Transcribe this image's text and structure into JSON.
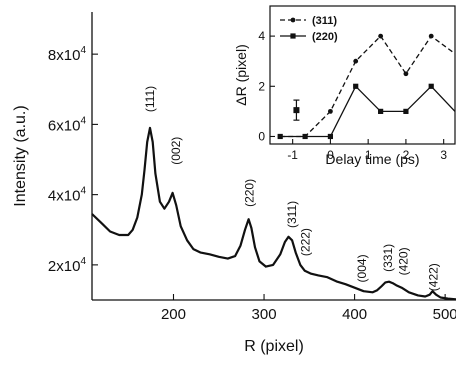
{
  "chart_data": [
    {
      "type": "line",
      "xlabel": "R (pixel)",
      "ylabel": "Intensity (a.u.)",
      "xlim": [
        110,
        512
      ],
      "ylim": [
        10000,
        92000
      ],
      "xticks": [
        200,
        300,
        400,
        500
      ],
      "xtick_labels": [
        "200",
        "300",
        "400",
        "500"
      ],
      "yticks": [
        20000,
        40000,
        60000,
        80000
      ],
      "ytick_labels": [
        {
          "base": "2x10",
          "exp": "4"
        },
        {
          "base": "4x10",
          "exp": "4"
        },
        {
          "base": "6x10",
          "exp": "4"
        },
        {
          "base": "8x10",
          "exp": "4"
        }
      ],
      "series": [
        {
          "x": [
            110,
            120,
            130,
            140,
            150,
            155,
            160,
            165,
            168,
            171,
            174,
            177,
            180,
            185,
            190,
            195,
            199,
            203,
            208,
            215,
            222,
            230,
            240,
            250,
            260,
            268,
            274,
            279,
            283,
            286,
            290,
            295,
            302,
            310,
            318,
            323,
            327,
            331,
            335,
            340,
            345,
            352,
            360,
            370,
            380,
            390,
            400,
            410,
            420,
            425,
            430,
            434,
            438,
            442,
            446,
            452,
            460,
            470,
            478,
            483,
            486,
            490,
            495,
            503,
            512
          ],
          "y": [
            34500,
            32000,
            29500,
            28500,
            28500,
            30000,
            33500,
            40000,
            47000,
            55000,
            59000,
            55000,
            46000,
            38000,
            36000,
            38000,
            40500,
            37000,
            31000,
            27000,
            24500,
            23500,
            23000,
            22300,
            21800,
            22500,
            25500,
            30000,
            33000,
            30500,
            25000,
            21000,
            19500,
            20000,
            23000,
            26500,
            28000,
            27000,
            23500,
            20000,
            18300,
            17500,
            17000,
            16500,
            15300,
            14500,
            13500,
            12500,
            12200,
            12800,
            14000,
            15000,
            15200,
            14800,
            14200,
            13500,
            12200,
            11300,
            11000,
            11500,
            12500,
            11500,
            10700,
            10400,
            10200
          ]
        }
      ],
      "annotations": [
        {
          "text": "(111)",
          "x": 174,
          "y": 63500
        },
        {
          "text": "(002)",
          "x": 203,
          "y": 48500
        },
        {
          "text": "(220)",
          "x": 284,
          "y": 36500
        },
        {
          "text": "(311)",
          "x": 331,
          "y": 30500
        },
        {
          "text": "(222)",
          "x": 346,
          "y": 22500
        },
        {
          "text": "(004)",
          "x": 408,
          "y": 15000
        },
        {
          "text": "(331)",
          "x": 437,
          "y": 18000
        },
        {
          "text": "(420)",
          "x": 454,
          "y": 17000
        },
        {
          "text": "(422)",
          "x": 487,
          "y": 12500
        }
      ]
    },
    {
      "type": "line",
      "xlabel": "Delay time (ps)",
      "ylabel": "ΔR (pixel)",
      "xlim": [
        -1.6,
        3.3
      ],
      "ylim": [
        -0.3,
        5.2
      ],
      "xticks": [
        -1,
        0,
        1,
        2,
        3
      ],
      "xtick_labels": [
        "-1",
        "0",
        "1",
        "2",
        "3"
      ],
      "yticks": [
        0,
        2,
        4
      ],
      "ytick_labels": [
        "0",
        "2",
        "4"
      ],
      "legend": "top-left",
      "series": [
        {
          "name": "(311)",
          "style": "dashed",
          "marker": "circle",
          "x": [
            -1.33,
            -0.67,
            0.0,
            0.67,
            1.33,
            2.0,
            2.67,
            3.3
          ],
          "y": [
            0,
            0,
            1,
            3,
            4,
            2.5,
            4,
            3.3
          ]
        },
        {
          "name": "(220)",
          "style": "solid",
          "marker": "square",
          "x": [
            -1.33,
            -0.67,
            0.0,
            0.67,
            1.33,
            2.0,
            2.67,
            3.3
          ],
          "y": [
            0,
            0,
            0,
            2,
            1,
            1,
            2,
            1
          ]
        }
      ],
      "error_bar": {
        "x": -0.9,
        "y": 1.05,
        "low": 0.65,
        "high": 1.45
      }
    }
  ]
}
